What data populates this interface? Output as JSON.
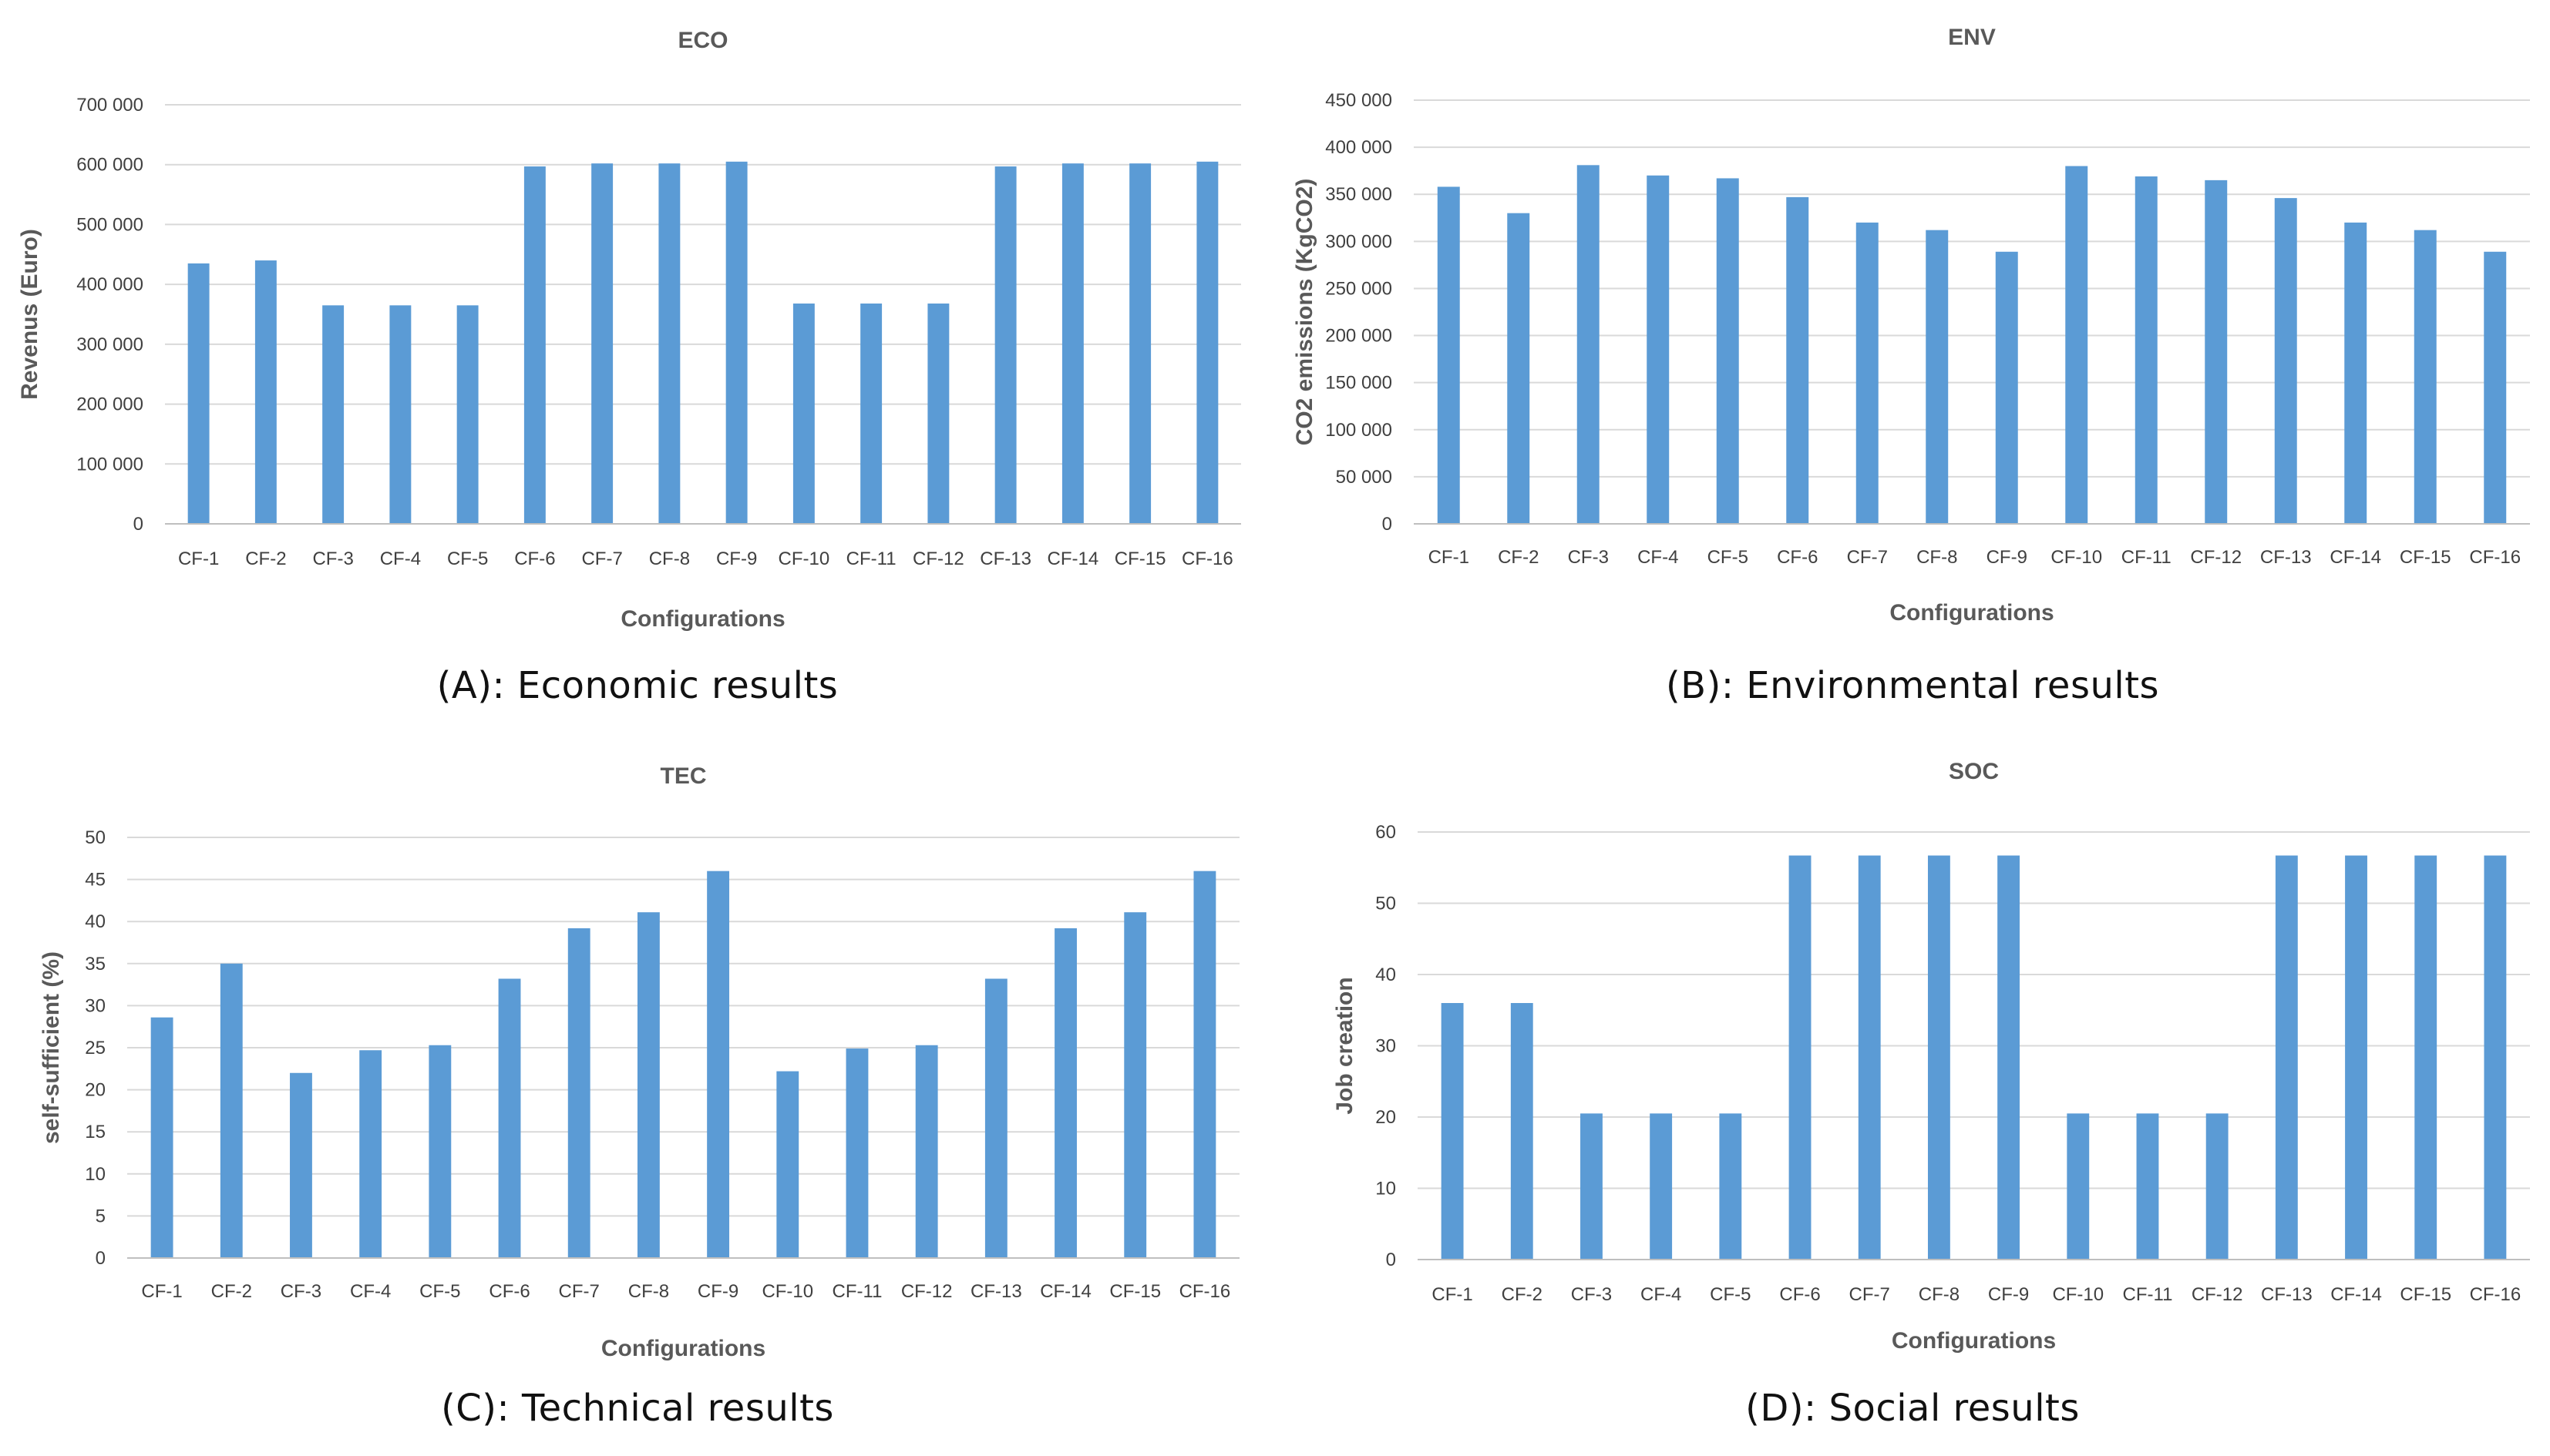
{
  "colors": {
    "bar": "#5b9bd5"
  },
  "chart_data": [
    {
      "type": "bar",
      "title": "ECO",
      "caption": "(A): Economic  results",
      "xlabel": "Configurations",
      "ylabel": "Revenus (Euro)",
      "ylim": [
        0,
        700000
      ],
      "ytick_step": 100000,
      "ytick_labels": [
        "0",
        "100 000",
        "200 000",
        "300 000",
        "400 000",
        "500 000",
        "600 000",
        "700 000"
      ],
      "categories": [
        "CF-1",
        "CF-2",
        "CF-3",
        "CF-4",
        "CF-5",
        "CF-6",
        "CF-7",
        "CF-8",
        "CF-9",
        "CF-10",
        "CF-11",
        "CF-12",
        "CF-13",
        "CF-14",
        "CF-15",
        "CF-16"
      ],
      "values": [
        435000,
        440000,
        365000,
        365000,
        365000,
        597000,
        602000,
        602000,
        605000,
        368000,
        368000,
        368000,
        597000,
        602000,
        602000,
        605000
      ]
    },
    {
      "type": "bar",
      "title": "ENV",
      "caption": "(B): Environmental  results",
      "xlabel": "Configurations",
      "ylabel": "CO2 emissions (KgCO2)",
      "ylim": [
        0,
        450000
      ],
      "ytick_step": 50000,
      "ytick_labels": [
        "0",
        "50 000",
        "100 000",
        "150 000",
        "200 000",
        "250 000",
        "300 000",
        "350 000",
        "400 000",
        "450 000"
      ],
      "categories": [
        "CF-1",
        "CF-2",
        "CF-3",
        "CF-4",
        "CF-5",
        "CF-6",
        "CF-7",
        "CF-8",
        "CF-9",
        "CF-10",
        "CF-11",
        "CF-12",
        "CF-13",
        "CF-14",
        "CF-15",
        "CF-16"
      ],
      "values": [
        358000,
        330000,
        381000,
        370000,
        367000,
        347000,
        320000,
        312000,
        289000,
        380000,
        369000,
        365000,
        346000,
        320000,
        312000,
        289000
      ]
    },
    {
      "type": "bar",
      "title": "TEC",
      "caption": "(C): Technical results",
      "xlabel": "Configurations",
      "ylabel": "self-sufficient (%)",
      "ylim": [
        0,
        50
      ],
      "ytick_step": 5,
      "ytick_labels": [
        "0",
        "5",
        "10",
        "15",
        "20",
        "25",
        "30",
        "35",
        "40",
        "45",
        "50"
      ],
      "categories": [
        "CF-1",
        "CF-2",
        "CF-3",
        "CF-4",
        "CF-5",
        "CF-6",
        "CF-7",
        "CF-8",
        "CF-9",
        "CF-10",
        "CF-11",
        "CF-12",
        "CF-13",
        "CF-14",
        "CF-15",
        "CF-16"
      ],
      "values": [
        28.6,
        35,
        22,
        24.7,
        25.3,
        33.2,
        39.2,
        41.1,
        46,
        22.2,
        24.9,
        25.3,
        33.2,
        39.2,
        41.1,
        46
      ]
    },
    {
      "type": "bar",
      "title": "SOC",
      "caption": "(D): Social results",
      "xlabel": "Configurations",
      "ylabel": "Job creation",
      "ylim": [
        0,
        60
      ],
      "ytick_step": 10,
      "ytick_labels": [
        "0",
        "10",
        "20",
        "30",
        "40",
        "50",
        "60"
      ],
      "categories": [
        "CF-1",
        "CF-2",
        "CF-3",
        "CF-4",
        "CF-5",
        "CF-6",
        "CF-7",
        "CF-8",
        "CF-9",
        "CF-10",
        "CF-11",
        "CF-12",
        "CF-13",
        "CF-14",
        "CF-15",
        "CF-16"
      ],
      "values": [
        36,
        36,
        20.5,
        20.5,
        20.5,
        56.7,
        56.7,
        56.7,
        56.7,
        20.5,
        20.5,
        20.5,
        56.7,
        56.7,
        56.7,
        56.7
      ]
    }
  ]
}
